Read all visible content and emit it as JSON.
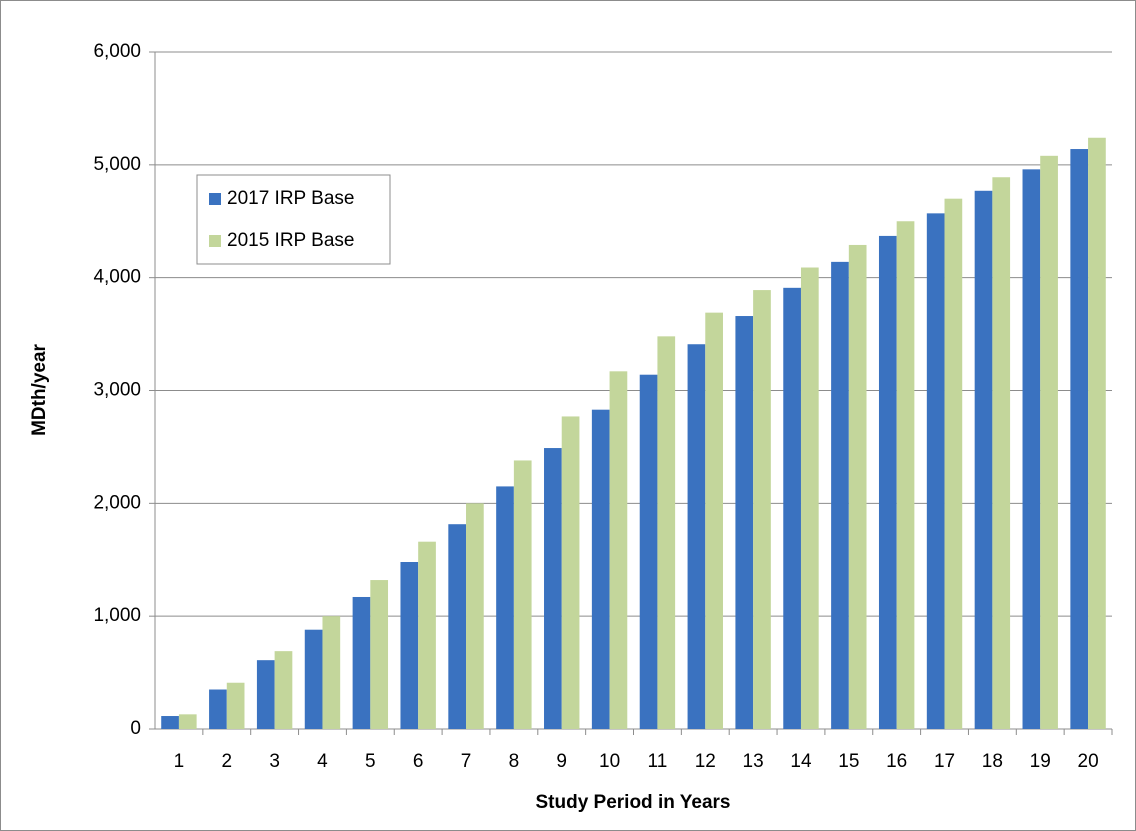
{
  "chart_data": {
    "type": "bar",
    "y_label": "MDth/year",
    "x_label": "Study Period in Years",
    "categories": [
      "1",
      "2",
      "3",
      "4",
      "5",
      "6",
      "7",
      "8",
      "9",
      "10",
      "11",
      "12",
      "13",
      "14",
      "15",
      "16",
      "17",
      "18",
      "19",
      "20"
    ],
    "series": [
      {
        "name": "2017 IRP Base",
        "color": "#3a72c0",
        "values": [
          115,
          350,
          610,
          880,
          1170,
          1480,
          1815,
          2150,
          2490,
          2830,
          3140,
          3410,
          3660,
          3910,
          4140,
          4370,
          4570,
          4770,
          4960,
          5140
        ]
      },
      {
        "name": "2015 IRP Base",
        "color": "#c3d69b",
        "values": [
          130,
          410,
          690,
          1000,
          1320,
          1660,
          2000,
          2380,
          2770,
          3170,
          3480,
          3690,
          3890,
          4090,
          4290,
          4500,
          4700,
          4890,
          5080,
          5240
        ]
      }
    ],
    "ylim": [
      0,
      6000
    ],
    "yticks": [
      0,
      {
        "value": 1000,
        "label": "1,000"
      },
      {
        "value": 2000,
        "label": "2,000"
      },
      {
        "value": 3000,
        "label": "3,000"
      },
      {
        "value": 4000,
        "label": "4,000"
      },
      {
        "value": 5000,
        "label": "5,000"
      },
      {
        "value": 6000,
        "label": "6,000"
      }
    ],
    "grid": true,
    "legend": "upper-left"
  }
}
